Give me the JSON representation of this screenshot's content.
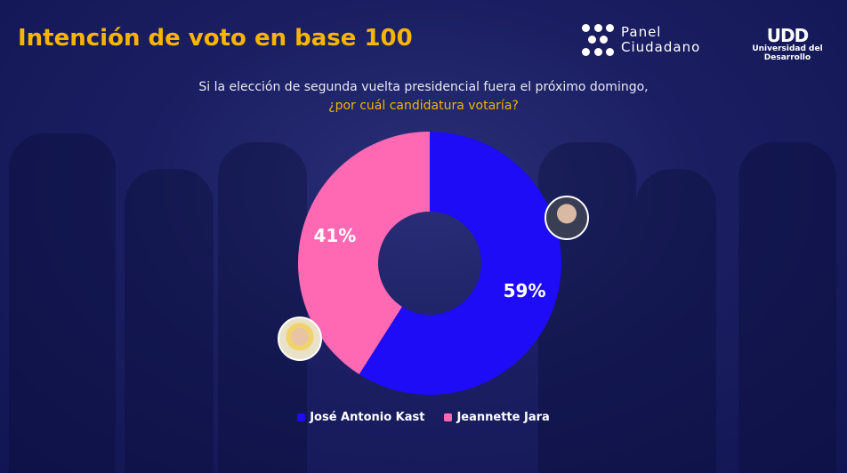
{
  "header": {
    "title": "Intención de voto en base 100"
  },
  "logos": {
    "panel_line1": "Panel",
    "panel_line2": "Ciudadano",
    "udd_mark": "UDD",
    "udd_name": "Universidad del Desarrollo"
  },
  "question": {
    "line1": "Si la elección de segunda vuelta presidencial fuera el próximo domingo,",
    "line2": "¿por cuál candidatura votaría?"
  },
  "chart_data": {
    "type": "pie",
    "variant": "donut",
    "title": "Intención de voto en base 100",
    "categories": [
      "José Antonio Kast",
      "Jeannette Jara"
    ],
    "values": [
      59,
      41
    ],
    "labels": [
      "59%",
      "41%"
    ],
    "colors": [
      "#1d0cf5",
      "#ff69b4"
    ],
    "legend": "bottom"
  }
}
